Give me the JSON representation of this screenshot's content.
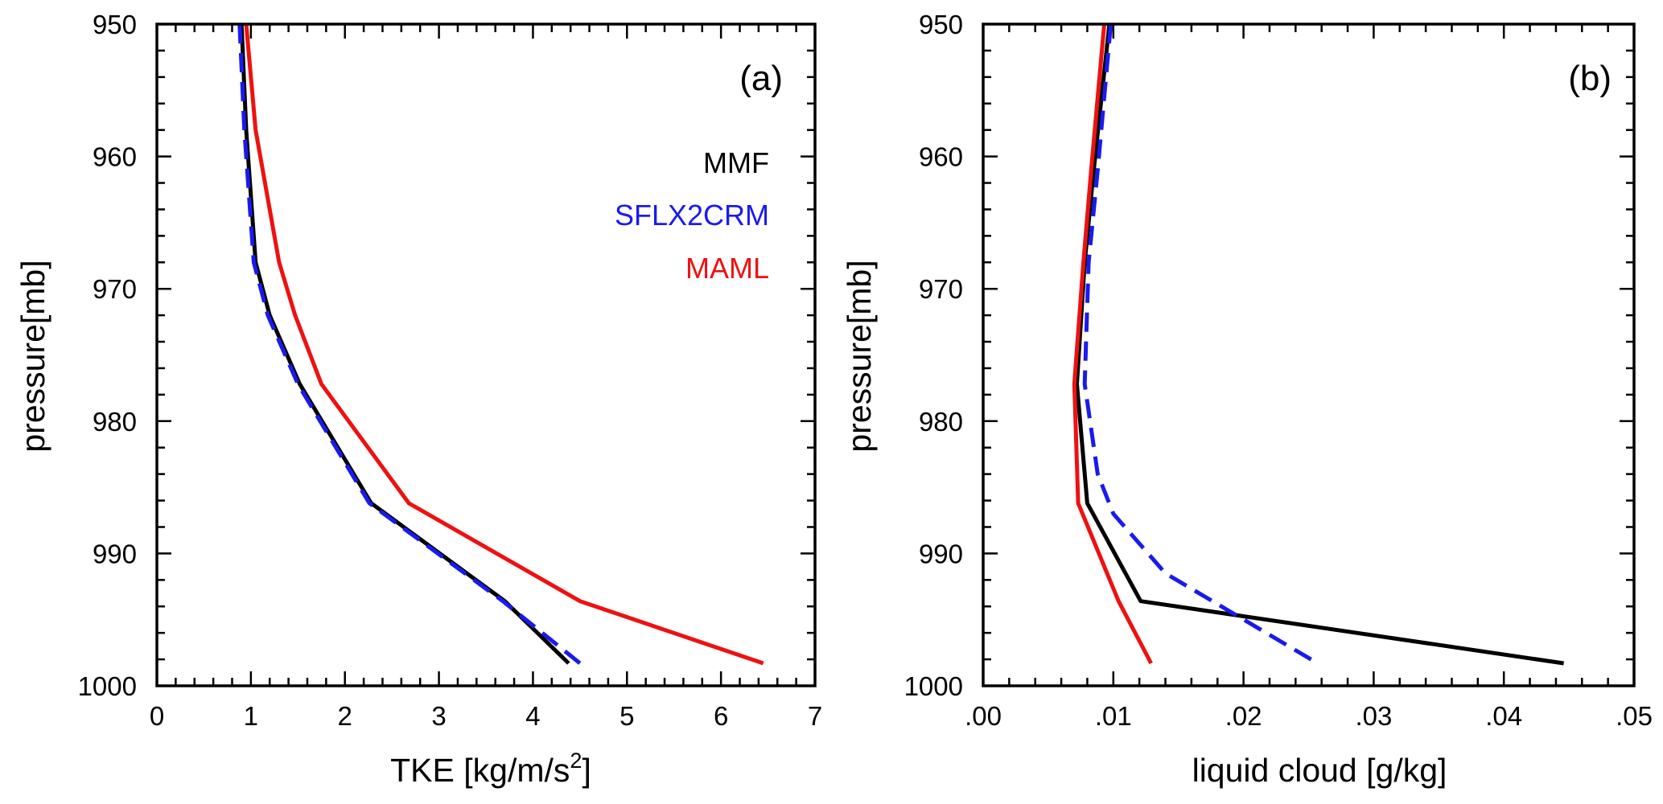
{
  "chart_data": [
    {
      "type": "line",
      "panel_label": "(a)",
      "xlabel": "TKE [kg/m/s",
      "xlabel_sup": "2",
      "xlabel_end": "]",
      "ylabel": "pressure[mb]",
      "xlim": [
        0,
        7
      ],
      "ylim": [
        950,
        1000
      ],
      "y_inverted": true,
      "xticks": [
        0,
        1,
        2,
        3,
        4,
        5,
        6,
        7
      ],
      "xtick_labels": [
        "0",
        "1",
        "2",
        "3",
        "4",
        "5",
        "6",
        "7"
      ],
      "yticks": [
        950,
        960,
        970,
        980,
        990,
        1000
      ],
      "ytick_labels": [
        "950",
        "960",
        "970",
        "980",
        "990",
        "1000"
      ],
      "legend": {
        "placement": "top-right",
        "entries": [
          "MMF",
          "SFLX2CRM",
          "MAML"
        ]
      },
      "series": [
        {
          "name": "MMF",
          "color": "#000000",
          "dash": "solid",
          "x": [
            0.9,
            0.95,
            1.05,
            1.2,
            1.52,
            2.28,
            3.7,
            4.38
          ],
          "y": [
            950.0,
            958.0,
            968.0,
            972.0,
            977.2,
            986.2,
            993.6,
            998.3
          ]
        },
        {
          "name": "SFLX2CRM",
          "color": "#1a1aee",
          "dash": "dashed",
          "x": [
            0.88,
            0.93,
            1.03,
            1.18,
            1.5,
            2.26,
            3.68,
            4.5
          ],
          "y": [
            950.0,
            958.0,
            968.0,
            972.0,
            977.2,
            986.2,
            993.6,
            998.3
          ]
        },
        {
          "name": "MAML",
          "color": "#ee1111",
          "dash": "solid",
          "x": [
            0.95,
            1.05,
            1.3,
            1.47,
            1.75,
            2.68,
            4.5,
            6.45
          ],
          "y": [
            950.0,
            958.0,
            968.0,
            972.0,
            977.2,
            986.2,
            993.6,
            998.3
          ]
        }
      ]
    },
    {
      "type": "line",
      "panel_label": "(b)",
      "xlabel": "liquid cloud [g/kg]",
      "ylabel": "pressure[mb]",
      "xlim": [
        0,
        0.05
      ],
      "ylim": [
        950,
        1000
      ],
      "y_inverted": true,
      "xticks": [
        0,
        0.01,
        0.02,
        0.03,
        0.04,
        0.05
      ],
      "xtick_labels": [
        ".00",
        ".01",
        ".02",
        ".03",
        ".04",
        ".05"
      ],
      "yticks": [
        950,
        960,
        970,
        980,
        990,
        1000
      ],
      "ytick_labels": [
        "950",
        "960",
        "970",
        "980",
        "990",
        "1000"
      ],
      "series": [
        {
          "name": "MMF",
          "color": "#000000",
          "dash": "solid",
          "x": [
            0.0097,
            0.0085,
            0.0078,
            0.0072,
            0.008,
            0.0121,
            0.0446
          ],
          "y": [
            950.0,
            961.0,
            968.0,
            977.2,
            986.2,
            993.6,
            998.3
          ]
        },
        {
          "name": "SFLX2CRM",
          "color": "#1a1aee",
          "dash": "dashed",
          "x": [
            0.0098,
            0.0088,
            0.0081,
            0.0078,
            0.0088,
            0.01,
            0.014,
            0.0257
          ],
          "y": [
            950.0,
            961.0,
            968.0,
            977.2,
            984.0,
            987.0,
            991.5,
            998.3
          ]
        },
        {
          "name": "MAML",
          "color": "#ee1111",
          "dash": "solid",
          "x": [
            0.0093,
            0.0083,
            0.0077,
            0.007,
            0.0073,
            0.0104,
            0.0129
          ],
          "y": [
            950.0,
            961.0,
            968.0,
            977.2,
            986.2,
            993.6,
            998.3
          ]
        }
      ]
    }
  ]
}
